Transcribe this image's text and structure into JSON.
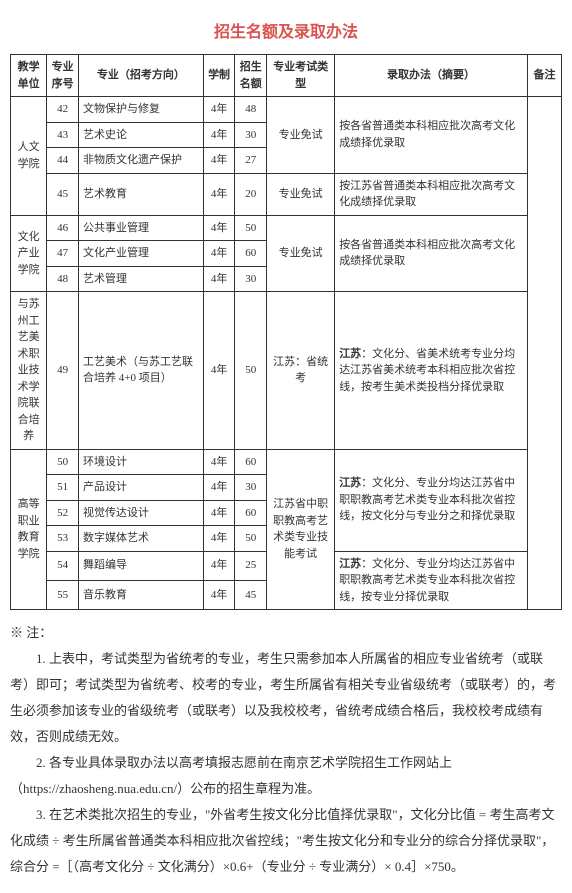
{
  "title": {
    "text": "招生名额及录取办法",
    "color": "#d9534f"
  },
  "headers": [
    "教学单位",
    "专业序号",
    "专业（招考方向）",
    "学制",
    "招生名额",
    "专业考试类型",
    "录取办法（摘要）",
    "备注"
  ],
  "table": [
    {
      "unit": "人文学院",
      "rows": [
        {
          "seq": "42",
          "major": "文物保护与修复",
          "dur": "4年",
          "quota": "48",
          "exam": "专业免试",
          "exam_span": 3,
          "method": "按各省普通类本科相应批次高考文化成绩择优录取",
          "method_span": 3
        },
        {
          "seq": "43",
          "major": "艺术史论",
          "dur": "4年",
          "quota": "30"
        },
        {
          "seq": "44",
          "major": "非物质文化遗产保护",
          "dur": "4年",
          "quota": "27"
        },
        {
          "seq": "45",
          "major": "艺术教育",
          "dur": "4年",
          "quota": "20",
          "exam": "专业免试",
          "exam_span": 1,
          "method": "按江苏省普通类本科相应批次高考文化成绩择优录取",
          "method_span": 1
        }
      ]
    },
    {
      "unit": "文化产业学院",
      "rows": [
        {
          "seq": "46",
          "major": "公共事业管理",
          "dur": "4年",
          "quota": "50",
          "exam": "专业免试",
          "exam_span": 3,
          "method": "按各省普通类本科相应批次高考文化成绩择优录取",
          "method_span": 3
        },
        {
          "seq": "47",
          "major": "文化产业管理",
          "dur": "4年",
          "quota": "60"
        },
        {
          "seq": "48",
          "major": "艺术管理",
          "dur": "4年",
          "quota": "30"
        }
      ]
    },
    {
      "unit": "与苏州工艺美术职业技术学院联合培养",
      "rows": [
        {
          "seq": "49",
          "major": "工艺美术（与苏工艺联合培养 4+0 项目）",
          "dur": "4年",
          "quota": "50",
          "exam": "江苏：省统考",
          "exam_span": 1,
          "method": "江苏：文化分、省美术统考专业分均达江苏省美术统考本科相应批次省控线，按考生美术类投档分择优录取",
          "method_span": 1,
          "method_bold": "江苏"
        }
      ]
    },
    {
      "unit": "高等职业教育学院",
      "rows": [
        {
          "seq": "50",
          "major": "环境设计",
          "dur": "4年",
          "quota": "60",
          "exam": "江苏省中职职教高考艺术类专业技能考试",
          "exam_span": 6,
          "method": "江苏：文化分、专业分均达江苏省中职职教高考艺术类专业本科批次省控线，按文化分与专业分之和择优录取",
          "method_span": 4,
          "method_bold": "江苏"
        },
        {
          "seq": "51",
          "major": "产品设计",
          "dur": "4年",
          "quota": "30"
        },
        {
          "seq": "52",
          "major": "视觉传达设计",
          "dur": "4年",
          "quota": "60"
        },
        {
          "seq": "53",
          "major": "数字媒体艺术",
          "dur": "4年",
          "quota": "50"
        },
        {
          "seq": "54",
          "major": "舞蹈编导",
          "dur": "4年",
          "quota": "25",
          "method": "江苏：文化分、专业分均达江苏省中职职教高考艺术类专业本科批次省控线，按专业分择优录取",
          "method_span": 2,
          "method_bold": "江苏"
        },
        {
          "seq": "55",
          "major": "音乐教育",
          "dur": "4年",
          "quota": "45"
        }
      ]
    }
  ],
  "notes": {
    "intro": "※ 注：",
    "items": [
      "1. 上表中，考试类型为省统考的专业，考生只需参加本人所属省的相应专业省统考（或联考）即可；考试类型为省统考、校考的专业，考生所属省有相关专业省级统考（或联考）的，考生必须参加该专业的省级统考（或联考）以及我校校考，省统考成绩合格后，我校校考成绩有效，否则成绩无效。",
      "2. 各专业具体录取办法以高考填报志愿前在南京艺术学院招生工作网站上（https://zhaosheng.nua.edu.cn/）公布的招生章程为准。",
      "3. 在艺术类批次招生的专业，\"外省考生按文化分比值择优录取\"，文化分比值 = 考生高考文化成绩 ÷ 考生所属省普通类本科相应批次省控线；\"考生按文化分和专业分的综合分择优录取\"，综合分 =［（高考文化分 ÷ 文化满分）×0.6+（专业分 ÷ 专业满分）× 0.4］×750。"
    ]
  }
}
